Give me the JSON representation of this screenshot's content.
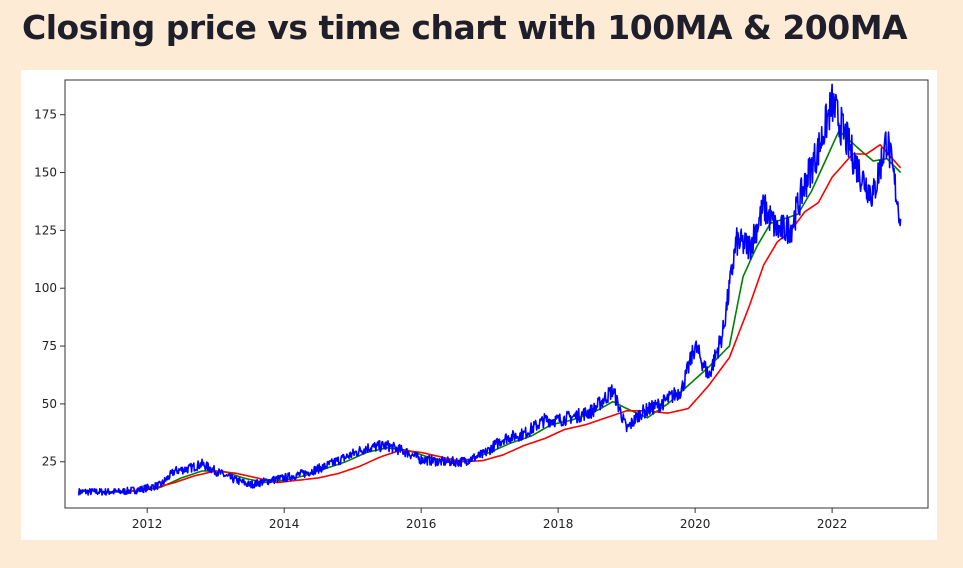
{
  "header": {
    "title": "Closing price vs time chart with 100MA & 200MA"
  },
  "colors": {
    "page_background": "#fdebd6",
    "close": "#0000ff",
    "ma100": "#008000",
    "ma200": "#ff0000"
  },
  "chart_data": {
    "type": "line",
    "title": "",
    "xlabel": "",
    "ylabel": "",
    "xlim": [
      2010.8,
      2023.4
    ],
    "ylim": [
      5,
      190
    ],
    "x_ticks": [
      2012,
      2014,
      2016,
      2018,
      2020,
      2022
    ],
    "x_tick_labels": [
      "2012",
      "2014",
      "2016",
      "2018",
      "2020",
      "2022"
    ],
    "y_ticks": [
      25,
      50,
      75,
      100,
      125,
      150,
      175
    ],
    "y_tick_labels": [
      "25",
      "50",
      "75",
      "100",
      "125",
      "150",
      "175"
    ],
    "grid": false,
    "legend": null,
    "series": [
      {
        "key": "close",
        "color": "#0000ff",
        "x": [
          2011.0,
          2011.3,
          2011.6,
          2011.9,
          2012.2,
          2012.4,
          2012.6,
          2012.8,
          2013.0,
          2013.2,
          2013.5,
          2013.8,
          2014.0,
          2014.3,
          2014.6,
          2014.9,
          2015.2,
          2015.5,
          2015.8,
          2016.0,
          2016.3,
          2016.6,
          2016.9,
          2017.2,
          2017.5,
          2017.8,
          2018.0,
          2018.3,
          2018.5,
          2018.8,
          2019.0,
          2019.2,
          2019.5,
          2019.8,
          2020.0,
          2020.2,
          2020.4,
          2020.6,
          2020.8,
          2021.0,
          2021.2,
          2021.4,
          2021.6,
          2021.8,
          2022.0,
          2022.2,
          2022.4,
          2022.6,
          2022.8,
          2023.0
        ],
        "y": [
          12,
          12,
          12,
          13,
          15,
          21,
          22,
          24,
          21,
          18,
          15,
          17,
          18,
          20,
          23,
          27,
          31,
          32,
          29,
          26,
          25,
          25,
          28,
          35,
          37,
          43,
          43,
          45,
          47,
          56,
          39,
          46,
          50,
          56,
          75,
          62,
          80,
          120,
          118,
          135,
          125,
          126,
          145,
          160,
          180,
          165,
          150,
          140,
          165,
          130
        ]
      },
      {
        "key": "ma100",
        "color": "#008000",
        "x": [
          2011.3,
          2011.6,
          2011.9,
          2012.2,
          2012.5,
          2012.8,
          2013.1,
          2013.4,
          2013.7,
          2014.0,
          2014.3,
          2014.6,
          2014.9,
          2015.2,
          2015.5,
          2015.8,
          2016.1,
          2016.4,
          2016.7,
          2017.0,
          2017.3,
          2017.6,
          2017.9,
          2018.2,
          2018.5,
          2018.8,
          2019.0,
          2019.3,
          2019.6,
          2019.9,
          2020.2,
          2020.5,
          2020.7,
          2020.9,
          2021.1,
          2021.3,
          2021.5,
          2021.7,
          2021.9,
          2022.1,
          2022.4,
          2022.6,
          2022.8,
          2023.0
        ],
        "y": [
          12,
          12,
          12.5,
          14,
          18,
          21,
          21,
          18,
          16,
          17,
          19,
          22,
          25,
          29,
          31,
          30,
          27,
          25,
          26,
          29,
          33,
          36,
          41,
          43,
          46,
          51,
          48,
          44,
          50,
          58,
          66,
          75,
          105,
          118,
          128,
          130,
          132,
          142,
          155,
          168,
          160,
          155,
          156,
          150
        ]
      },
      {
        "key": "ma200",
        "color": "#ff0000",
        "x": [
          2011.5,
          2011.8,
          2012.1,
          2012.4,
          2012.7,
          2013.0,
          2013.3,
          2013.6,
          2013.9,
          2014.2,
          2014.5,
          2014.8,
          2015.1,
          2015.4,
          2015.7,
          2016.0,
          2016.3,
          2016.6,
          2016.9,
          2017.2,
          2017.5,
          2017.8,
          2018.1,
          2018.4,
          2018.7,
          2019.0,
          2019.3,
          2019.6,
          2019.9,
          2020.2,
          2020.5,
          2020.8,
          2021.0,
          2021.2,
          2021.4,
          2021.6,
          2021.8,
          2022.0,
          2022.3,
          2022.5,
          2022.7,
          2023.0
        ],
        "y": [
          12,
          12.5,
          13.5,
          16,
          19,
          21,
          20,
          18,
          16,
          17,
          18,
          20,
          23,
          27,
          30,
          29,
          27,
          25,
          25.5,
          28,
          32,
          35,
          39,
          41,
          44,
          47,
          47,
          46,
          48,
          58,
          70,
          93,
          110,
          120,
          125,
          133,
          137,
          148,
          158,
          158,
          162,
          152
        ]
      }
    ]
  }
}
